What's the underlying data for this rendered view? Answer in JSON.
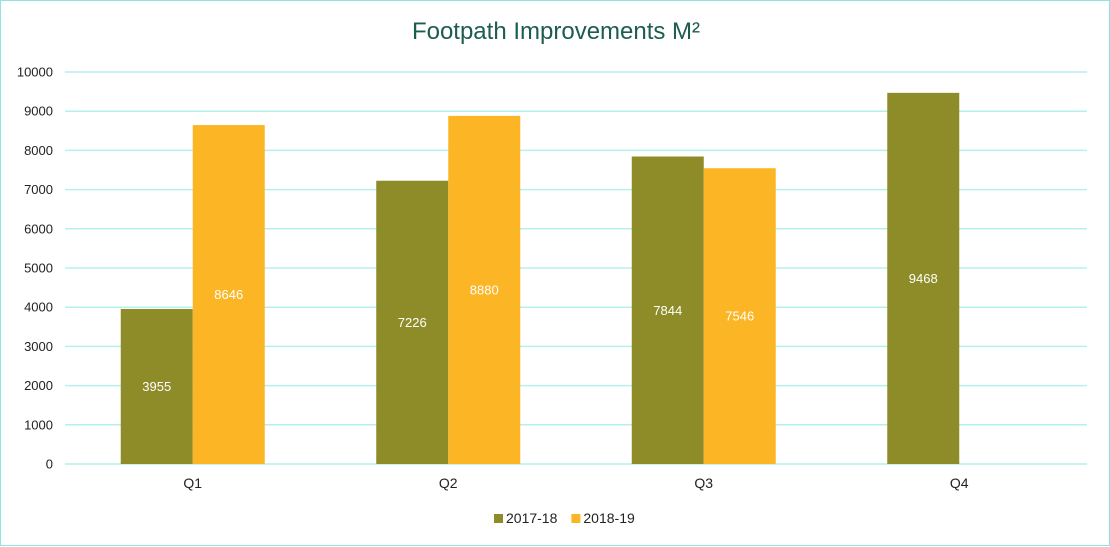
{
  "chart_data": {
    "type": "bar",
    "title": "Footpath Improvements M²",
    "categories": [
      "Q1",
      "Q2",
      "Q3",
      "Q4"
    ],
    "series": [
      {
        "name": "2017-18",
        "color": "#8e8c28",
        "values": [
          3955,
          7226,
          7844,
          9468
        ]
      },
      {
        "name": "2018-19",
        "color": "#fbb525",
        "values": [
          8646,
          8880,
          7546,
          null
        ]
      }
    ],
    "ylim": [
      0,
      10000
    ],
    "yticks": [
      0,
      1000,
      2000,
      3000,
      4000,
      5000,
      6000,
      7000,
      8000,
      9000,
      10000
    ],
    "grid": true,
    "gridline_color": "#b5f0ee",
    "legend_position": "bottom",
    "data_labels": true
  }
}
